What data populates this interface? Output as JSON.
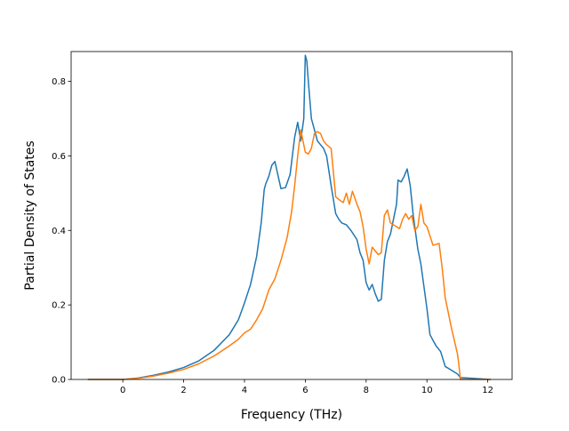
{
  "chart_data": {
    "type": "line",
    "xlabel": "Frequency (THz)",
    "ylabel": "Partial Density of States",
    "xlim": [
      -1.7,
      12.8
    ],
    "ylim": [
      0,
      0.88
    ],
    "xticks": [
      0,
      2,
      4,
      6,
      8,
      10,
      12
    ],
    "yticks": [
      0.0,
      0.2,
      0.4,
      0.6,
      0.8
    ],
    "xtick_labels": [
      "0",
      "2",
      "4",
      "6",
      "8",
      "10",
      "12"
    ],
    "ytick_labels": [
      "0.0",
      "0.2",
      "0.4",
      "0.6",
      "0.8"
    ],
    "grid": false,
    "legend": "none",
    "series": [
      {
        "color": "#1f77b4",
        "x": [
          -1.15,
          0,
          0.5,
          1,
          1.5,
          2,
          2.5,
          3,
          3.5,
          3.8,
          4.0,
          4.2,
          4.4,
          4.55,
          4.65,
          4.7,
          4.8,
          4.9,
          5.0,
          5.2,
          5.35,
          5.5,
          5.65,
          5.75,
          5.85,
          5.95,
          6.0,
          6.05,
          6.1,
          6.2,
          6.3,
          6.4,
          6.5,
          6.6,
          6.7,
          6.85,
          7.0,
          7.1,
          7.2,
          7.35,
          7.5,
          7.7,
          7.8,
          7.9,
          8.0,
          8.1,
          8.2,
          8.3,
          8.4,
          8.5,
          8.6,
          8.7,
          8.8,
          8.9,
          9.0,
          9.05,
          9.15,
          9.25,
          9.35,
          9.45,
          9.55,
          9.7,
          9.8,
          9.9,
          10.0,
          10.1,
          10.3,
          10.45,
          10.6,
          10.8,
          11.0,
          11.1,
          12.1
        ],
        "values": [
          0.0,
          0.0,
          0.004,
          0.011,
          0.02,
          0.032,
          0.05,
          0.078,
          0.12,
          0.16,
          0.205,
          0.255,
          0.33,
          0.42,
          0.51,
          0.525,
          0.545,
          0.575,
          0.585,
          0.512,
          0.515,
          0.55,
          0.65,
          0.69,
          0.64,
          0.7,
          0.87,
          0.855,
          0.8,
          0.7,
          0.67,
          0.64,
          0.63,
          0.62,
          0.6,
          0.52,
          0.445,
          0.43,
          0.42,
          0.415,
          0.4,
          0.375,
          0.34,
          0.32,
          0.26,
          0.24,
          0.255,
          0.23,
          0.21,
          0.215,
          0.32,
          0.37,
          0.39,
          0.43,
          0.47,
          0.535,
          0.53,
          0.545,
          0.565,
          0.52,
          0.44,
          0.35,
          0.31,
          0.25,
          0.19,
          0.12,
          0.09,
          0.075,
          0.035,
          0.025,
          0.015,
          0.005,
          0.0
        ]
      },
      {
        "color": "#ff7f0e",
        "x": [
          -1.15,
          0,
          0.5,
          1,
          1.5,
          2,
          2.5,
          3,
          3.5,
          3.8,
          4.0,
          4.2,
          4.4,
          4.6,
          4.8,
          5.0,
          5.2,
          5.4,
          5.55,
          5.65,
          5.75,
          5.85,
          6.0,
          6.1,
          6.2,
          6.3,
          6.4,
          6.5,
          6.6,
          6.7,
          6.85,
          7.0,
          7.15,
          7.25,
          7.35,
          7.45,
          7.55,
          7.7,
          7.8,
          7.9,
          8.0,
          8.1,
          8.2,
          8.4,
          8.5,
          8.6,
          8.7,
          8.8,
          9.0,
          9.1,
          9.2,
          9.3,
          9.4,
          9.5,
          9.6,
          9.7,
          9.8,
          9.9,
          10.0,
          10.2,
          10.4,
          10.5,
          10.6,
          10.8,
          11.0,
          11.05,
          11.1,
          12.1
        ],
        "values": [
          0.0,
          0.0,
          0.003,
          0.009,
          0.017,
          0.027,
          0.042,
          0.063,
          0.09,
          0.108,
          0.125,
          0.135,
          0.16,
          0.19,
          0.24,
          0.27,
          0.32,
          0.38,
          0.45,
          0.52,
          0.6,
          0.67,
          0.61,
          0.605,
          0.62,
          0.66,
          0.665,
          0.66,
          0.64,
          0.63,
          0.62,
          0.49,
          0.48,
          0.475,
          0.5,
          0.47,
          0.505,
          0.47,
          0.45,
          0.41,
          0.35,
          0.31,
          0.355,
          0.335,
          0.34,
          0.44,
          0.455,
          0.42,
          0.41,
          0.405,
          0.43,
          0.445,
          0.43,
          0.44,
          0.4,
          0.41,
          0.47,
          0.42,
          0.41,
          0.36,
          0.365,
          0.3,
          0.22,
          0.14,
          0.07,
          0.04,
          0.0,
          0.0
        ]
      }
    ]
  }
}
